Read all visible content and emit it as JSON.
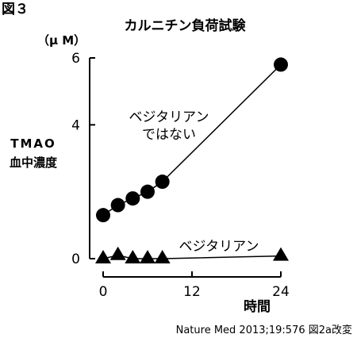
{
  "figure_label": "図３",
  "source": "Nature Med 2013;19:576 図2a改変",
  "chart_data": {
    "type": "line",
    "title": "カルニチン負荷試験",
    "ylabel_lines": [
      "TMAO",
      "血中濃度"
    ],
    "yunit": "（μ M）",
    "xlabel": "時間",
    "xlim": [
      0,
      24
    ],
    "ylim": [
      0,
      6
    ],
    "xticks": [
      0,
      12,
      24
    ],
    "yticks": [
      0,
      4,
      6
    ],
    "grid": false,
    "legend": "none",
    "series": [
      {
        "name_lines": [
          "ベジタリアン",
          "ではない"
        ],
        "marker": "circle",
        "x": [
          0,
          2,
          4,
          6,
          8,
          24
        ],
        "y": [
          1.3,
          1.6,
          1.8,
          2.0,
          2.3,
          5.8
        ]
      },
      {
        "name_lines": [
          "ベジタリアン"
        ],
        "marker": "triangle",
        "x": [
          0,
          2,
          4,
          6,
          8,
          24
        ],
        "y": [
          0.0,
          0.1,
          0.0,
          0.0,
          0.0,
          0.08
        ]
      }
    ]
  }
}
